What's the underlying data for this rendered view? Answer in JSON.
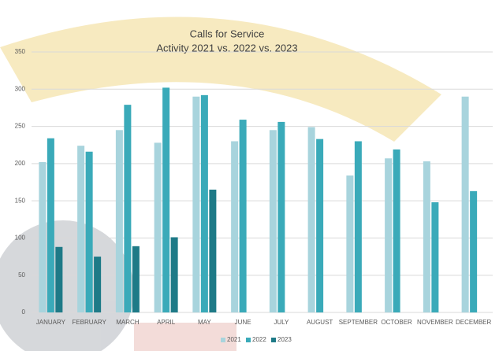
{
  "chart_data": {
    "type": "bar",
    "title": "Calls for Service",
    "subtitle": "Activity 2021 vs. 2022 vs. 2023",
    "categories": [
      "JANUARY",
      "FEBRUARY",
      "MARCH",
      "APRIL",
      "MAY",
      "JUNE",
      "JULY",
      "AUGUST",
      "SEPTEMBER",
      "OCTOBER",
      "NOVEMBER",
      "DECEMBER"
    ],
    "series": [
      {
        "name": "2021",
        "color": "#a8d4dd",
        "values": [
          202,
          224,
          245,
          228,
          290,
          230,
          245,
          249,
          184,
          207,
          203,
          290
        ]
      },
      {
        "name": "2022",
        "color": "#3aaab9",
        "values": [
          234,
          216,
          279,
          302,
          292,
          259,
          256,
          233,
          230,
          219,
          148,
          163
        ]
      },
      {
        "name": "2023",
        "color": "#1e7a87",
        "values": [
          88,
          75,
          89,
          101,
          165,
          null,
          null,
          null,
          null,
          null,
          null,
          null
        ]
      }
    ],
    "ylim": [
      0,
      350
    ],
    "yticks": [
      0,
      50,
      100,
      150,
      200,
      250,
      300,
      350
    ],
    "grid": true,
    "legend": "bottom"
  }
}
